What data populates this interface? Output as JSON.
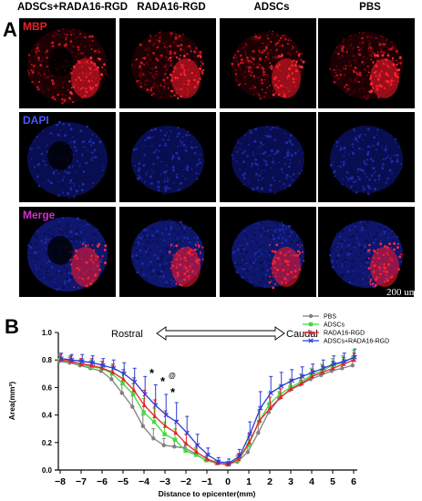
{
  "panels": {
    "a_letter": "A",
    "b_letter": "B"
  },
  "columns": [
    {
      "label": "ADSCs+RADA16-RGD"
    },
    {
      "label": "RADA16-RGD"
    },
    {
      "label": "ADSCs"
    },
    {
      "label": "PBS"
    }
  ],
  "rows": [
    {
      "label": "MBP",
      "color": "#e8212b"
    },
    {
      "label": "DAPI",
      "color": "#4a55ff"
    },
    {
      "label": "Merge",
      "color": "#d22fd2"
    }
  ],
  "scale_bar": {
    "label": "200 um"
  },
  "colors": {
    "pbs": "#808080",
    "adscs": "#3fdc3f",
    "rada": "#e8212b",
    "combo": "#2a3bd8"
  },
  "chart_data": {
    "type": "line",
    "title": "",
    "xlabel": "Distance to epicenter(mm)",
    "ylabel": "Area(mm²)",
    "ylim": [
      0.0,
      1.0
    ],
    "xlim": [
      -8,
      6
    ],
    "xticks": [
      "−8",
      "−7",
      "−6",
      "−5",
      "−4",
      "−3",
      "−2",
      "−1",
      "0",
      "1",
      "2",
      "3",
      "4",
      "5",
      "6"
    ],
    "yticks": [
      "0.0",
      "0.2",
      "0.4",
      "0.6",
      "0.8",
      "1.0"
    ],
    "grid": false,
    "legend_position": "top-right",
    "annotations": {
      "rostral": "Rostral",
      "caudal": "Caudal",
      "star1": "*",
      "star2": "*",
      "star3": "*",
      "at": "@"
    },
    "x": [
      -8,
      -7.5,
      -7,
      -6.5,
      -6,
      -5.5,
      -5,
      -4.5,
      -4,
      -3.5,
      -3,
      -2.5,
      -2,
      -1.5,
      -1,
      -0.5,
      0,
      0.5,
      1,
      1.5,
      2,
      2.5,
      3,
      3.5,
      4,
      4.5,
      5,
      5.5,
      6
    ],
    "series": [
      {
        "name": "PBS",
        "color": "#808080",
        "marker": "circle",
        "values": [
          0.79,
          0.78,
          0.76,
          0.74,
          0.72,
          0.66,
          0.56,
          0.46,
          0.32,
          0.23,
          0.18,
          0.17,
          0.16,
          0.12,
          0.07,
          0.05,
          0.04,
          0.06,
          0.13,
          0.27,
          0.42,
          0.52,
          0.58,
          0.62,
          0.66,
          0.69,
          0.72,
          0.74,
          0.76
        ],
        "errors": [
          0.04,
          0.04,
          0.04,
          0.05,
          0.05,
          0.06,
          0.06,
          0.08,
          0.08,
          0.07,
          0.05,
          0.05,
          0.04,
          0.04,
          0.03,
          0.02,
          0.02,
          0.04,
          0.05,
          0.06,
          0.06,
          0.05,
          0.06,
          0.05,
          0.05,
          0.04,
          0.04,
          0.04,
          0.04
        ]
      },
      {
        "name": "ADSCs",
        "color": "#3fdc3f",
        "marker": "square",
        "values": [
          0.8,
          0.79,
          0.77,
          0.75,
          0.74,
          0.7,
          0.63,
          0.55,
          0.42,
          0.35,
          0.26,
          0.22,
          0.14,
          0.11,
          0.07,
          0.05,
          0.04,
          0.07,
          0.18,
          0.35,
          0.48,
          0.55,
          0.6,
          0.64,
          0.69,
          0.72,
          0.76,
          0.78,
          0.82
        ],
        "errors": [
          0.04,
          0.04,
          0.04,
          0.05,
          0.05,
          0.06,
          0.07,
          0.08,
          0.1,
          0.1,
          0.09,
          0.08,
          0.06,
          0.05,
          0.03,
          0.02,
          0.02,
          0.04,
          0.06,
          0.08,
          0.08,
          0.06,
          0.06,
          0.06,
          0.05,
          0.05,
          0.05,
          0.05,
          0.05
        ]
      },
      {
        "name": "RADA16-RGD",
        "color": "#e8212b",
        "marker": "triangle",
        "values": [
          0.8,
          0.79,
          0.77,
          0.76,
          0.74,
          0.71,
          0.66,
          0.58,
          0.47,
          0.39,
          0.32,
          0.27,
          0.19,
          0.13,
          0.08,
          0.05,
          0.04,
          0.08,
          0.2,
          0.36,
          0.45,
          0.53,
          0.59,
          0.63,
          0.68,
          0.71,
          0.74,
          0.77,
          0.8
        ],
        "errors": [
          0.04,
          0.04,
          0.04,
          0.05,
          0.05,
          0.06,
          0.07,
          0.09,
          0.11,
          0.12,
          0.11,
          0.09,
          0.07,
          0.05,
          0.03,
          0.02,
          0.02,
          0.04,
          0.06,
          0.08,
          0.08,
          0.06,
          0.06,
          0.06,
          0.05,
          0.05,
          0.05,
          0.05,
          0.05
        ]
      },
      {
        "name": "ADSCs+RADA16-RGD",
        "color": "#2a3bd8",
        "marker": "cross",
        "values": [
          0.81,
          0.8,
          0.79,
          0.78,
          0.76,
          0.74,
          0.7,
          0.64,
          0.55,
          0.47,
          0.4,
          0.35,
          0.27,
          0.18,
          0.11,
          0.06,
          0.05,
          0.1,
          0.26,
          0.45,
          0.56,
          0.61,
          0.65,
          0.68,
          0.71,
          0.74,
          0.77,
          0.79,
          0.82
        ],
        "errors": [
          0.04,
          0.04,
          0.05,
          0.05,
          0.05,
          0.06,
          0.08,
          0.1,
          0.13,
          0.15,
          0.15,
          0.14,
          0.12,
          0.08,
          0.05,
          0.03,
          0.03,
          0.05,
          0.09,
          0.12,
          0.12,
          0.1,
          0.08,
          0.07,
          0.06,
          0.06,
          0.06,
          0.06,
          0.06
        ]
      }
    ]
  }
}
